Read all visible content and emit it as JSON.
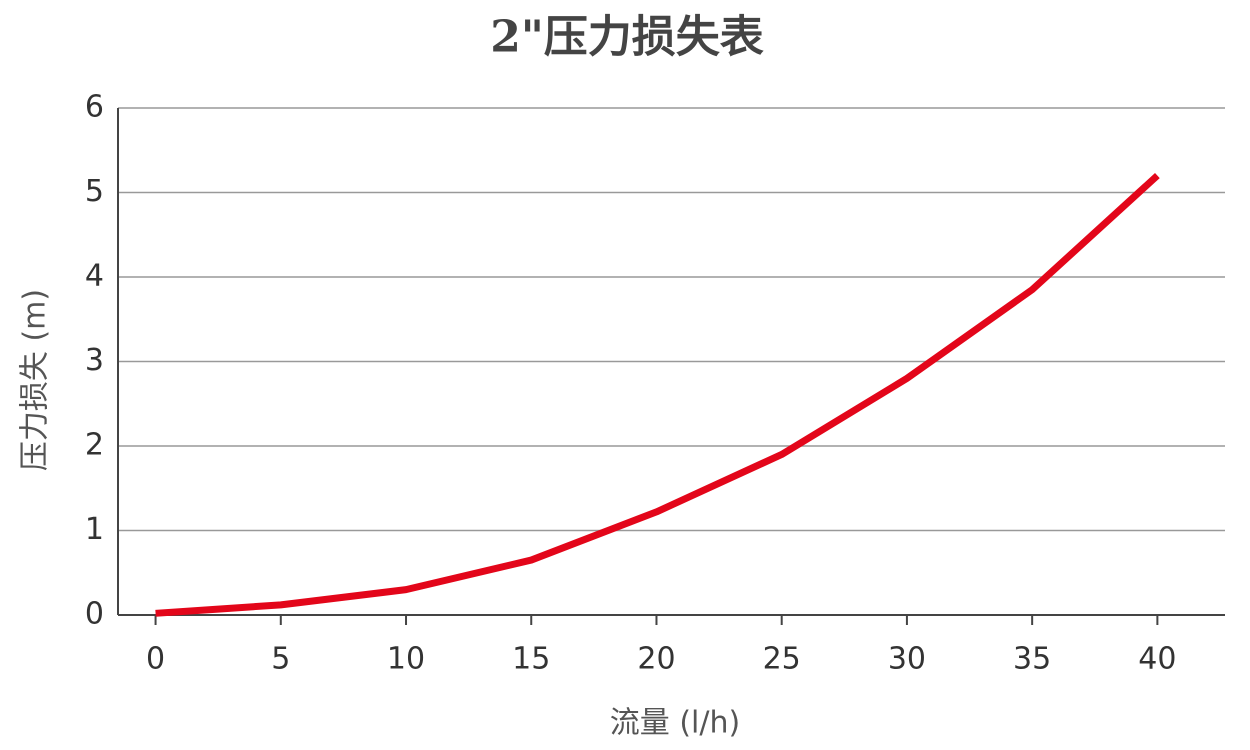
{
  "chart_data": {
    "type": "line",
    "title": "2\"压力损失表",
    "x_label": "流量 (l/h)",
    "y_label": "压力损失 (m)",
    "x": [
      0,
      2.5,
      5,
      10,
      15,
      20,
      25,
      30,
      35,
      40
    ],
    "series": [
      {
        "color": "#e3061a",
        "values": [
          0.02,
          0.07,
          0.12,
          0.3,
          0.65,
          1.22,
          1.9,
          2.8,
          3.85,
          5.2
        ]
      }
    ],
    "xlim": [
      -1.5,
      42.7
    ],
    "xticks": [
      0,
      5,
      10,
      15,
      20,
      25,
      30,
      35,
      40
    ],
    "ylim": [
      0,
      6
    ],
    "yticks": [
      0,
      1,
      2,
      3,
      4,
      5,
      6
    ],
    "grid": true
  }
}
